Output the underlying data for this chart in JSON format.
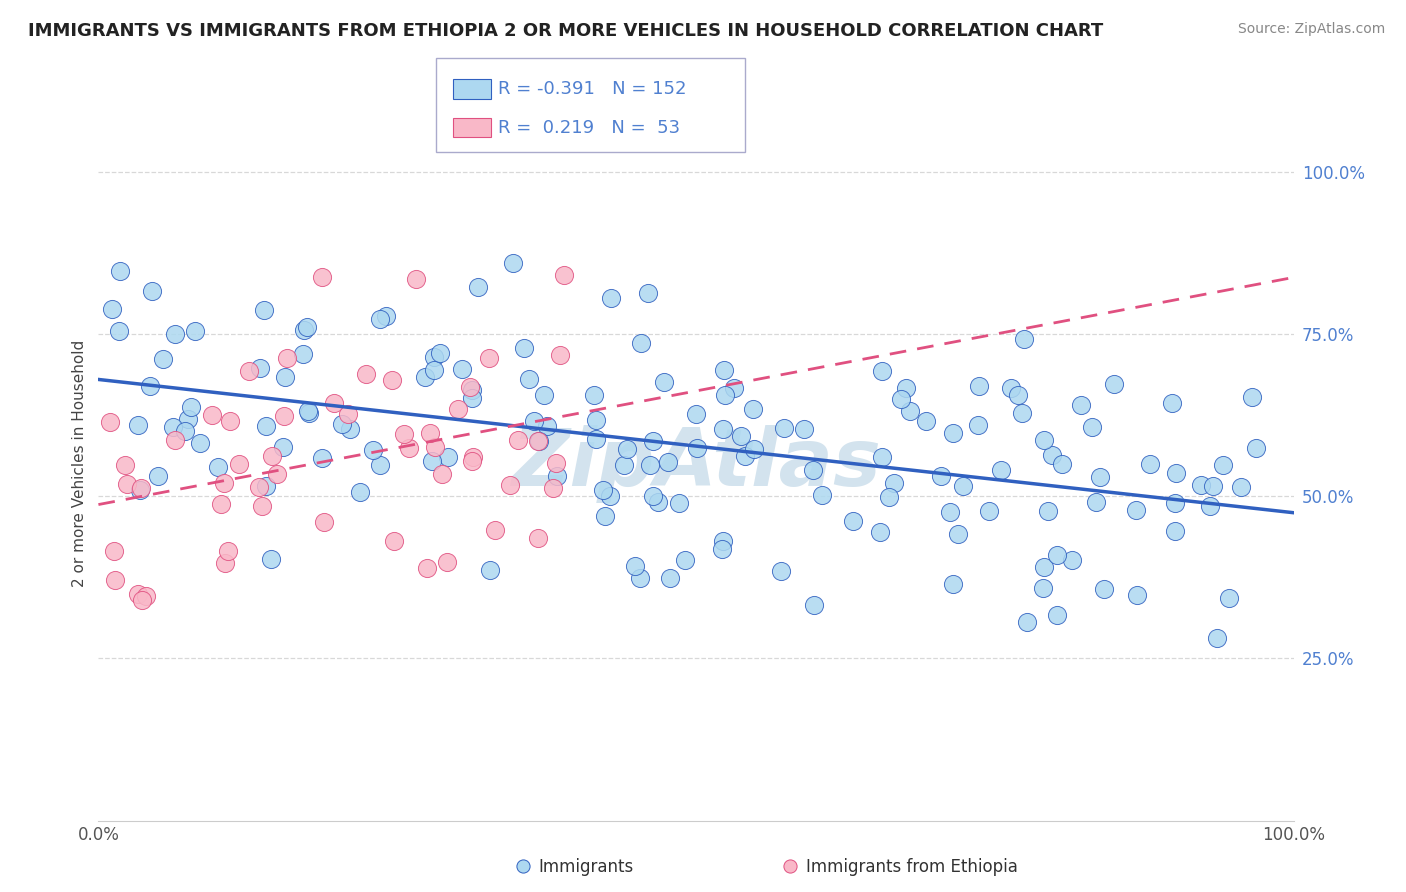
{
  "title": "IMMIGRANTS VS IMMIGRANTS FROM ETHIOPIA 2 OR MORE VEHICLES IN HOUSEHOLD CORRELATION CHART",
  "source": "Source: ZipAtlas.com",
  "ylabel": "2 or more Vehicles in Household",
  "legend1_label": "Immigrants",
  "legend2_label": "Immigrants from Ethiopia",
  "r1": "-0.391",
  "n1": "152",
  "r2": "0.219",
  "n2": "53",
  "color_blue": "#add8f0",
  "color_pink": "#f9b8c8",
  "line_blue": "#3060c0",
  "line_pink": "#e05080",
  "watermark": "ZipAtlas",
  "watermark_color": "#b0cce0",
  "grid_color": "#d8d8d8",
  "title_fontsize": 13,
  "tick_fontsize": 12,
  "ylabel_fontsize": 11,
  "source_fontsize": 10,
  "right_tick_color": "#5080d0"
}
